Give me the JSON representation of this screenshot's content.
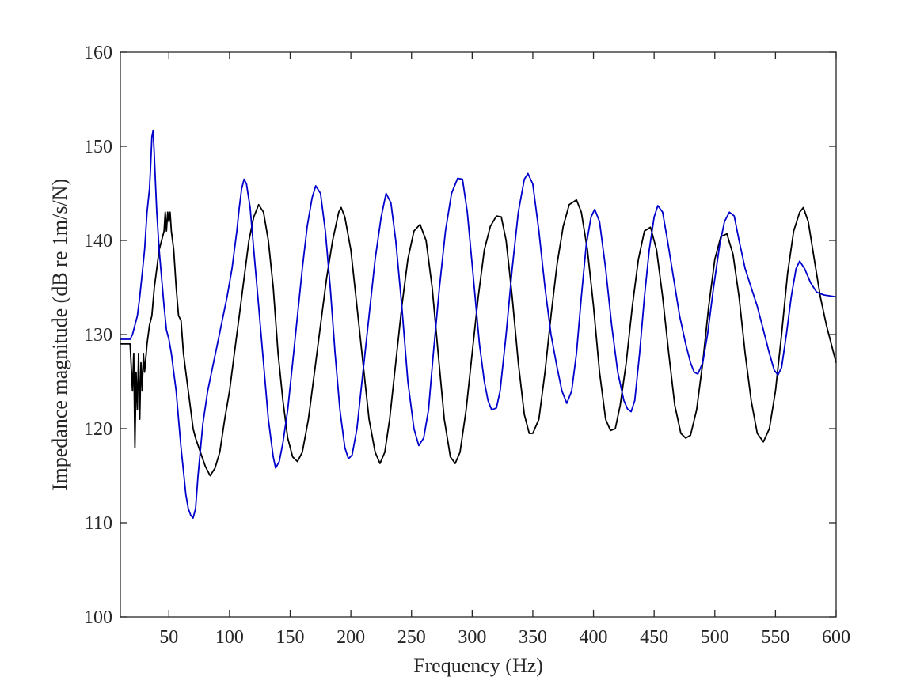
{
  "chart_data": {
    "type": "line",
    "title": "",
    "xlabel": "Frequency (Hz)",
    "ylabel": "Impedance magnitude (dB re 1m/s/N)",
    "xlim": [
      10,
      600
    ],
    "ylim": [
      100,
      160
    ],
    "x_ticks": [
      50,
      100,
      150,
      200,
      250,
      300,
      350,
      400,
      450,
      500,
      550,
      600
    ],
    "y_ticks": [
      100,
      110,
      120,
      130,
      140,
      150,
      160
    ],
    "grid": false,
    "legend": "none",
    "series": [
      {
        "color": "#000000",
        "points": [
          [
            10,
            129
          ],
          [
            18,
            129
          ],
          [
            20,
            124
          ],
          [
            21,
            128
          ],
          [
            22,
            118
          ],
          [
            23,
            126
          ],
          [
            24,
            122
          ],
          [
            25,
            128
          ],
          [
            26,
            121
          ],
          [
            27,
            127
          ],
          [
            28,
            124
          ],
          [
            29,
            128
          ],
          [
            30,
            126
          ],
          [
            32,
            129
          ],
          [
            34,
            131
          ],
          [
            36,
            132
          ],
          [
            38,
            135
          ],
          [
            40,
            137
          ],
          [
            42,
            139
          ],
          [
            44,
            140
          ],
          [
            46,
            141
          ],
          [
            47,
            143
          ],
          [
            48,
            141
          ],
          [
            49,
            143
          ],
          [
            50,
            142
          ],
          [
            51,
            143
          ],
          [
            52,
            141
          ],
          [
            54,
            139
          ],
          [
            56,
            135
          ],
          [
            58,
            132
          ],
          [
            60,
            131.5
          ],
          [
            62,
            128
          ],
          [
            64,
            126
          ],
          [
            66,
            124
          ],
          [
            68,
            122
          ],
          [
            70,
            120
          ],
          [
            72,
            119
          ],
          [
            76,
            117.5
          ],
          [
            80,
            116
          ],
          [
            84,
            115
          ],
          [
            88,
            115.8
          ],
          [
            92,
            117.5
          ],
          [
            96,
            121
          ],
          [
            100,
            124
          ],
          [
            104,
            128
          ],
          [
            108,
            132
          ],
          [
            112,
            136
          ],
          [
            116,
            140
          ],
          [
            120,
            142.5
          ],
          [
            124,
            143.8
          ],
          [
            128,
            143
          ],
          [
            132,
            140
          ],
          [
            136,
            135
          ],
          [
            140,
            128
          ],
          [
            144,
            123
          ],
          [
            148,
            119
          ],
          [
            152,
            117
          ],
          [
            156,
            116.5
          ],
          [
            160,
            117.5
          ],
          [
            165,
            121
          ],
          [
            170,
            126
          ],
          [
            175,
            131
          ],
          [
            180,
            136
          ],
          [
            185,
            140
          ],
          [
            190,
            143
          ],
          [
            192,
            143.5
          ],
          [
            195,
            142.5
          ],
          [
            200,
            139
          ],
          [
            205,
            133
          ],
          [
            210,
            127
          ],
          [
            215,
            121
          ],
          [
            220,
            117.5
          ],
          [
            224,
            116.3
          ],
          [
            228,
            117.5
          ],
          [
            232,
            121
          ],
          [
            237,
            127
          ],
          [
            242,
            133
          ],
          [
            247,
            138
          ],
          [
            252,
            141
          ],
          [
            257,
            141.7
          ],
          [
            262,
            140
          ],
          [
            267,
            135
          ],
          [
            272,
            128
          ],
          [
            277,
            121
          ],
          [
            282,
            117
          ],
          [
            286,
            116.3
          ],
          [
            290,
            117.5
          ],
          [
            295,
            122
          ],
          [
            300,
            128
          ],
          [
            305,
            134
          ],
          [
            310,
            139
          ],
          [
            315,
            141.5
          ],
          [
            320,
            142.6
          ],
          [
            324,
            142.5
          ],
          [
            328,
            140
          ],
          [
            333,
            134
          ],
          [
            338,
            127
          ],
          [
            343,
            121.5
          ],
          [
            347,
            119.5
          ],
          [
            350,
            119.5
          ],
          [
            355,
            121
          ],
          [
            360,
            126
          ],
          [
            365,
            132
          ],
          [
            370,
            137.5
          ],
          [
            375,
            141.5
          ],
          [
            380,
            143.8
          ],
          [
            386,
            144.3
          ],
          [
            390,
            143
          ],
          [
            395,
            139
          ],
          [
            400,
            133
          ],
          [
            405,
            126
          ],
          [
            410,
            121
          ],
          [
            414,
            119.8
          ],
          [
            418,
            120
          ],
          [
            422,
            122.5
          ],
          [
            427,
            127
          ],
          [
            432,
            133
          ],
          [
            437,
            138
          ],
          [
            442,
            141
          ],
          [
            447,
            141.4
          ],
          [
            452,
            139
          ],
          [
            457,
            134
          ],
          [
            462,
            128
          ],
          [
            467,
            122.5
          ],
          [
            472,
            119.5
          ],
          [
            476,
            119
          ],
          [
            480,
            119.3
          ],
          [
            485,
            122
          ],
          [
            490,
            127
          ],
          [
            495,
            133
          ],
          [
            500,
            138
          ],
          [
            505,
            140.4
          ],
          [
            510,
            140.7
          ],
          [
            515,
            138.5
          ],
          [
            520,
            134
          ],
          [
            525,
            128
          ],
          [
            530,
            123
          ],
          [
            535,
            119.5
          ],
          [
            540,
            118.6
          ],
          [
            545,
            120
          ],
          [
            550,
            124
          ],
          [
            555,
            130
          ],
          [
            560,
            136.5
          ],
          [
            565,
            141
          ],
          [
            570,
            143
          ],
          [
            573,
            143.5
          ],
          [
            577,
            142
          ],
          [
            582,
            138
          ],
          [
            587,
            134
          ],
          [
            592,
            131
          ],
          [
            597,
            128.5
          ],
          [
            600,
            127
          ]
        ]
      },
      {
        "color": "#0000cc",
        "points": [
          [
            10,
            129.5
          ],
          [
            18,
            129.5
          ],
          [
            20,
            130
          ],
          [
            22,
            131
          ],
          [
            24,
            132
          ],
          [
            26,
            134
          ],
          [
            28,
            136.5
          ],
          [
            30,
            139
          ],
          [
            32,
            143
          ],
          [
            34,
            145.5
          ],
          [
            35,
            148
          ],
          [
            36,
            151
          ],
          [
            37,
            151.7
          ],
          [
            38,
            149
          ],
          [
            39,
            146
          ],
          [
            40,
            143
          ],
          [
            42,
            139
          ],
          [
            44,
            136
          ],
          [
            46,
            133
          ],
          [
            48,
            130.5
          ],
          [
            50,
            129.5
          ],
          [
            52,
            128
          ],
          [
            54,
            126
          ],
          [
            56,
            124
          ],
          [
            58,
            121
          ],
          [
            60,
            118
          ],
          [
            62,
            115.5
          ],
          [
            64,
            113
          ],
          [
            66,
            111.5
          ],
          [
            68,
            110.8
          ],
          [
            70,
            110.5
          ],
          [
            72,
            111.5
          ],
          [
            74,
            115
          ],
          [
            78,
            120.5
          ],
          [
            82,
            124
          ],
          [
            86,
            126.5
          ],
          [
            90,
            129
          ],
          [
            94,
            131.5
          ],
          [
            98,
            134
          ],
          [
            102,
            137
          ],
          [
            106,
            141
          ],
          [
            108,
            143.5
          ],
          [
            110,
            145.5
          ],
          [
            112,
            146.5
          ],
          [
            114,
            146
          ],
          [
            117,
            143.5
          ],
          [
            120,
            139
          ],
          [
            124,
            133
          ],
          [
            128,
            127
          ],
          [
            132,
            121
          ],
          [
            136,
            117
          ],
          [
            138,
            115.8
          ],
          [
            141,
            116.5
          ],
          [
            144,
            118.5
          ],
          [
            148,
            122
          ],
          [
            152,
            127
          ],
          [
            156,
            132
          ],
          [
            160,
            137
          ],
          [
            164,
            141.5
          ],
          [
            168,
            144.5
          ],
          [
            171,
            145.8
          ],
          [
            175,
            145
          ],
          [
            179,
            141
          ],
          [
            183,
            135
          ],
          [
            187,
            128
          ],
          [
            191,
            122
          ],
          [
            195,
            118
          ],
          [
            198,
            116.8
          ],
          [
            201,
            117.2
          ],
          [
            205,
            120
          ],
          [
            210,
            126
          ],
          [
            215,
            132
          ],
          [
            220,
            138
          ],
          [
            225,
            142.5
          ],
          [
            229,
            145
          ],
          [
            233,
            144
          ],
          [
            237,
            140
          ],
          [
            242,
            133
          ],
          [
            247,
            125
          ],
          [
            252,
            120
          ],
          [
            256,
            118.2
          ],
          [
            260,
            119
          ],
          [
            264,
            122
          ],
          [
            268,
            128
          ],
          [
            273,
            135
          ],
          [
            278,
            141
          ],
          [
            283,
            145
          ],
          [
            288,
            146.6
          ],
          [
            292,
            146.5
          ],
          [
            296,
            143
          ],
          [
            301,
            136
          ],
          [
            306,
            129
          ],
          [
            310,
            125
          ],
          [
            313,
            123
          ],
          [
            316,
            122
          ],
          [
            320,
            122.2
          ],
          [
            323,
            124
          ],
          [
            328,
            130
          ],
          [
            333,
            137
          ],
          [
            338,
            143
          ],
          [
            343,
            146.5
          ],
          [
            346,
            147.1
          ],
          [
            350,
            146
          ],
          [
            355,
            141
          ],
          [
            360,
            135
          ],
          [
            365,
            130
          ],
          [
            370,
            126.5
          ],
          [
            374,
            124
          ],
          [
            378,
            122.7
          ],
          [
            382,
            124
          ],
          [
            386,
            128
          ],
          [
            390,
            134
          ],
          [
            394,
            139.5
          ],
          [
            398,
            142.5
          ],
          [
            401,
            143.3
          ],
          [
            405,
            142
          ],
          [
            410,
            137
          ],
          [
            415,
            131
          ],
          [
            420,
            126
          ],
          [
            425,
            123
          ],
          [
            428,
            122.1
          ],
          [
            431,
            121.8
          ],
          [
            434,
            123
          ],
          [
            438,
            128
          ],
          [
            442,
            134
          ],
          [
            446,
            139
          ],
          [
            450,
            142.5
          ],
          [
            453,
            143.7
          ],
          [
            457,
            143
          ],
          [
            461,
            140
          ],
          [
            466,
            136
          ],
          [
            471,
            132
          ],
          [
            476,
            129
          ],
          [
            480,
            127
          ],
          [
            483,
            126
          ],
          [
            486,
            125.8
          ],
          [
            490,
            127
          ],
          [
            494,
            130
          ],
          [
            499,
            135
          ],
          [
            504,
            139.5
          ],
          [
            508,
            142
          ],
          [
            512,
            143
          ],
          [
            516,
            142.6
          ],
          [
            520,
            140
          ],
          [
            525,
            137
          ],
          [
            530,
            135
          ],
          [
            535,
            133
          ],
          [
            540,
            130.5
          ],
          [
            545,
            128
          ],
          [
            549,
            126.2
          ],
          [
            552,
            125.7
          ],
          [
            555,
            126.5
          ],
          [
            559,
            130
          ],
          [
            563,
            134
          ],
          [
            567,
            137
          ],
          [
            570,
            137.8
          ],
          [
            574,
            137
          ],
          [
            579,
            135.5
          ],
          [
            584,
            134.5
          ],
          [
            590,
            134.2
          ],
          [
            600,
            134
          ]
        ]
      }
    ]
  }
}
